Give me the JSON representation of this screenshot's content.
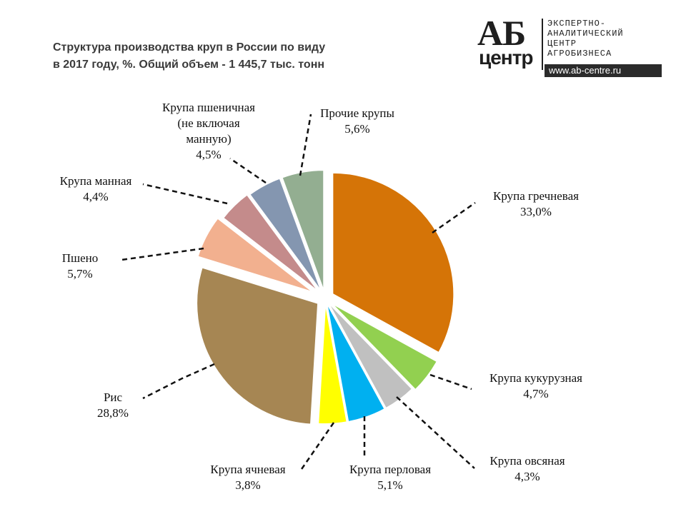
{
  "title": {
    "line1": "Структура производства круп в России по виду",
    "line2": "в 2017 году, %. Общий объем -  1 445,7 тыс. тонн"
  },
  "logo": {
    "mark_top": "АБ",
    "mark_bottom": "центр",
    "lines": [
      "ЭКСПЕРТНО-",
      "АНАЛИТИЧЕСКИЙ",
      "ЦЕНТР",
      "АГРОБИЗНЕСА"
    ],
    "url": "www.ab-centre.ru"
  },
  "chart_data": {
    "type": "pie",
    "title": "Структура производства круп в России по виду в 2017 году, %. Общий объем -  1 445,7 тыс. тонн",
    "unit": "%",
    "slices": [
      {
        "name": "Крупа гречневая",
        "value": 33.0,
        "label": "33,0%",
        "color": "#D57407"
      },
      {
        "name": "Крупа кукурузная",
        "value": 4.7,
        "label": "4,7%",
        "color": "#92D050"
      },
      {
        "name": "Крупа овсяная",
        "value": 4.3,
        "label": "4,3%",
        "color": "#C0C0C0"
      },
      {
        "name": "Крупа перловая",
        "value": 5.1,
        "label": "5,1%",
        "color": "#00B0F0"
      },
      {
        "name": "Крупа ячневая",
        "value": 3.8,
        "label": "3,8%",
        "color": "#FFFF00"
      },
      {
        "name": "Рис",
        "value": 28.8,
        "label": "28,8%",
        "color": "#A68653"
      },
      {
        "name": "Пшено",
        "value": 5.7,
        "label": "5,7%",
        "color": "#F2B08F"
      },
      {
        "name": "Крупа манная",
        "value": 4.4,
        "label": "4,4%",
        "color": "#C48B8B"
      },
      {
        "name": "Крупа пшеничная (не включая манную)",
        "value": 4.5,
        "label": "4,5%",
        "color": "#8496B0"
      },
      {
        "name": "Прочие крупы",
        "value": 5.6,
        "label": "5,6%",
        "color": "#93AE91"
      }
    ],
    "label_lines": [
      [
        "Крупа гречневая",
        "33,0%"
      ],
      [
        "Крупа кукурузная",
        "4,7%"
      ],
      [
        "Крупа овсяная",
        "4,3%"
      ],
      [
        "Крупа перловая",
        "5,1%"
      ],
      [
        "Крупа ячневая",
        "3,8%"
      ],
      [
        "Рис",
        "28,8%"
      ],
      [
        "Пшено",
        "5,7%"
      ],
      [
        "Крупа манная",
        "4,4%"
      ],
      [
        "Крупа пшеничная",
        "(не включая",
        "манную)",
        "4,5%"
      ],
      [
        "Прочие крупы",
        "5,6%"
      ]
    ],
    "legend": "none",
    "label_style": "outside with dashed leader lines"
  }
}
